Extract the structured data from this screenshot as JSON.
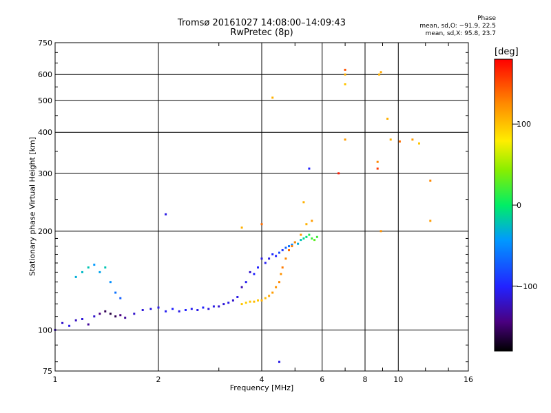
{
  "title_line1": "Tromsø 20161027 14:08:00–14:09:43",
  "title_line2": "RwPretec (8p)",
  "phase_box": {
    "title": "Phase",
    "o_stats": "mean, sd,O: −91.9, 22.5",
    "x_stats": "mean, sd,X:  95.8, 23.7"
  },
  "colorbar": {
    "unit": "[deg]",
    "range": [
      -180,
      180
    ],
    "ticks": [
      100,
      0,
      -100
    ],
    "tick_labels": [
      "100",
      "0",
      "−100"
    ],
    "colormap": "rainbow (black-purple-blue-cyan-green-yellow-orange-red)"
  },
  "chart_data": {
    "type": "scatter",
    "title": "Tromsø 20161027 14:08:00–14:09:43",
    "subtitle": "RwPretec (8p)",
    "xlabel": "Frequency [MHz]",
    "ylabel": "Stationary phase Virtual Height [km]",
    "xscale": "log",
    "yscale": "log",
    "xlim": [
      1,
      16
    ],
    "ylim": [
      75,
      750
    ],
    "xticks": [
      1,
      2,
      4,
      6,
      8,
      10,
      16
    ],
    "xtick_labels": [
      "1",
      "2",
      "4",
      "6",
      "8",
      "10",
      "16"
    ],
    "yticks": [
      75,
      100,
      200,
      300,
      400,
      500,
      600,
      750
    ],
    "ytick_labels": [
      "75",
      "100",
      "200",
      "300",
      "400",
      "500",
      "600",
      "750"
    ],
    "grid": true,
    "color_encoding": "phase (deg)",
    "series": [
      {
        "values": [
          [
            1.0,
            100,
            -130
          ],
          [
            1.05,
            105,
            -120
          ],
          [
            1.1,
            103,
            -110
          ],
          [
            1.15,
            107,
            -125
          ],
          [
            1.2,
            108,
            -115
          ],
          [
            1.25,
            104,
            -140
          ],
          [
            1.3,
            110,
            -120
          ],
          [
            1.35,
            112,
            -150
          ],
          [
            1.4,
            114,
            -160
          ],
          [
            1.45,
            112,
            -165
          ],
          [
            1.5,
            110,
            -160
          ],
          [
            1.55,
            111,
            -150
          ],
          [
            1.6,
            109,
            -140
          ],
          [
            1.7,
            112,
            -120
          ],
          [
            1.8,
            115,
            -115
          ],
          [
            1.9,
            116,
            -110
          ],
          [
            2.0,
            117,
            -110
          ],
          [
            2.1,
            114,
            -105
          ],
          [
            2.2,
            116,
            -100
          ],
          [
            2.3,
            114,
            -110
          ],
          [
            2.4,
            115,
            -100
          ],
          [
            2.5,
            116,
            -105
          ],
          [
            2.6,
            115,
            -110
          ],
          [
            2.7,
            117,
            -100
          ],
          [
            2.8,
            116,
            -115
          ],
          [
            2.9,
            118,
            -110
          ],
          [
            3.0,
            118,
            -120
          ],
          [
            3.1,
            120,
            -115
          ],
          [
            3.2,
            121,
            -110
          ],
          [
            3.3,
            123,
            -120
          ],
          [
            3.4,
            126,
            -110
          ],
          [
            3.5,
            135,
            -130
          ],
          [
            3.6,
            140,
            -105
          ],
          [
            3.7,
            150,
            -120
          ],
          [
            3.8,
            148,
            -100
          ],
          [
            3.9,
            155,
            -100
          ],
          [
            4.0,
            165,
            -110
          ],
          [
            4.1,
            160,
            -105
          ],
          [
            4.2,
            165,
            -110
          ],
          [
            4.3,
            170,
            -95
          ],
          [
            4.4,
            168,
            -100
          ],
          [
            4.5,
            172,
            -80
          ],
          [
            4.6,
            175,
            -90
          ],
          [
            4.7,
            178,
            -70
          ],
          [
            4.8,
            180,
            -60
          ],
          [
            4.9,
            182,
            -50
          ],
          [
            5.0,
            185,
            -40
          ],
          [
            5.1,
            183,
            -30
          ],
          [
            5.2,
            188,
            -20
          ],
          [
            5.3,
            190,
            -10
          ],
          [
            5.4,
            192,
            -5
          ],
          [
            5.5,
            195,
            10
          ],
          [
            5.6,
            190,
            20
          ],
          [
            5.7,
            188,
            30
          ],
          [
            5.8,
            192,
            20
          ],
          [
            1.15,
            145,
            -30
          ],
          [
            1.2,
            150,
            -25
          ],
          [
            1.25,
            155,
            -20
          ],
          [
            1.3,
            158,
            -40
          ],
          [
            1.35,
            150,
            -35
          ],
          [
            1.4,
            155,
            -20
          ],
          [
            1.45,
            140,
            -45
          ],
          [
            1.5,
            130,
            -60
          ],
          [
            1.55,
            125,
            -70
          ],
          [
            2.1,
            225,
            -110
          ],
          [
            4.5,
            80,
            -110
          ],
          [
            5.5,
            310,
            -100
          ]
        ]
      },
      {
        "values": [
          [
            3.5,
            120,
            100
          ],
          [
            3.6,
            121,
            95
          ],
          [
            3.7,
            122,
            100
          ],
          [
            3.8,
            122,
            105
          ],
          [
            3.9,
            123,
            100
          ],
          [
            4.0,
            123,
            110
          ],
          [
            4.1,
            125,
            105
          ],
          [
            4.2,
            127,
            115
          ],
          [
            4.3,
            130,
            120
          ],
          [
            4.4,
            135,
            125
          ],
          [
            4.5,
            140,
            130
          ],
          [
            4.55,
            148,
            125
          ],
          [
            4.6,
            155,
            135
          ],
          [
            4.7,
            165,
            130
          ],
          [
            4.8,
            175,
            140
          ],
          [
            4.9,
            180,
            135
          ],
          [
            5.0,
            185,
            130
          ],
          [
            5.2,
            195,
            120
          ],
          [
            5.4,
            210,
            110
          ],
          [
            5.6,
            215,
            120
          ],
          [
            5.3,
            245,
            110
          ],
          [
            4.0,
            210,
            140
          ],
          [
            3.5,
            205,
            110
          ],
          [
            4.3,
            510,
            110
          ],
          [
            7.0,
            600,
            110
          ],
          [
            7.0,
            560,
            100
          ],
          [
            7.0,
            380,
            120
          ],
          [
            8.8,
            600,
            110
          ],
          [
            8.9,
            610,
            115
          ],
          [
            8.7,
            325,
            130
          ],
          [
            8.7,
            310,
            160
          ],
          [
            8.9,
            200,
            125
          ],
          [
            9.3,
            440,
            110
          ],
          [
            9.5,
            380,
            110
          ],
          [
            10.1,
            375,
            140
          ],
          [
            11.0,
            380,
            120
          ],
          [
            11.5,
            370,
            100
          ],
          [
            12.4,
            285,
            130
          ],
          [
            12.4,
            215,
            120
          ],
          [
            7.0,
            620,
            150
          ],
          [
            6.7,
            300,
            170
          ]
        ]
      }
    ]
  }
}
